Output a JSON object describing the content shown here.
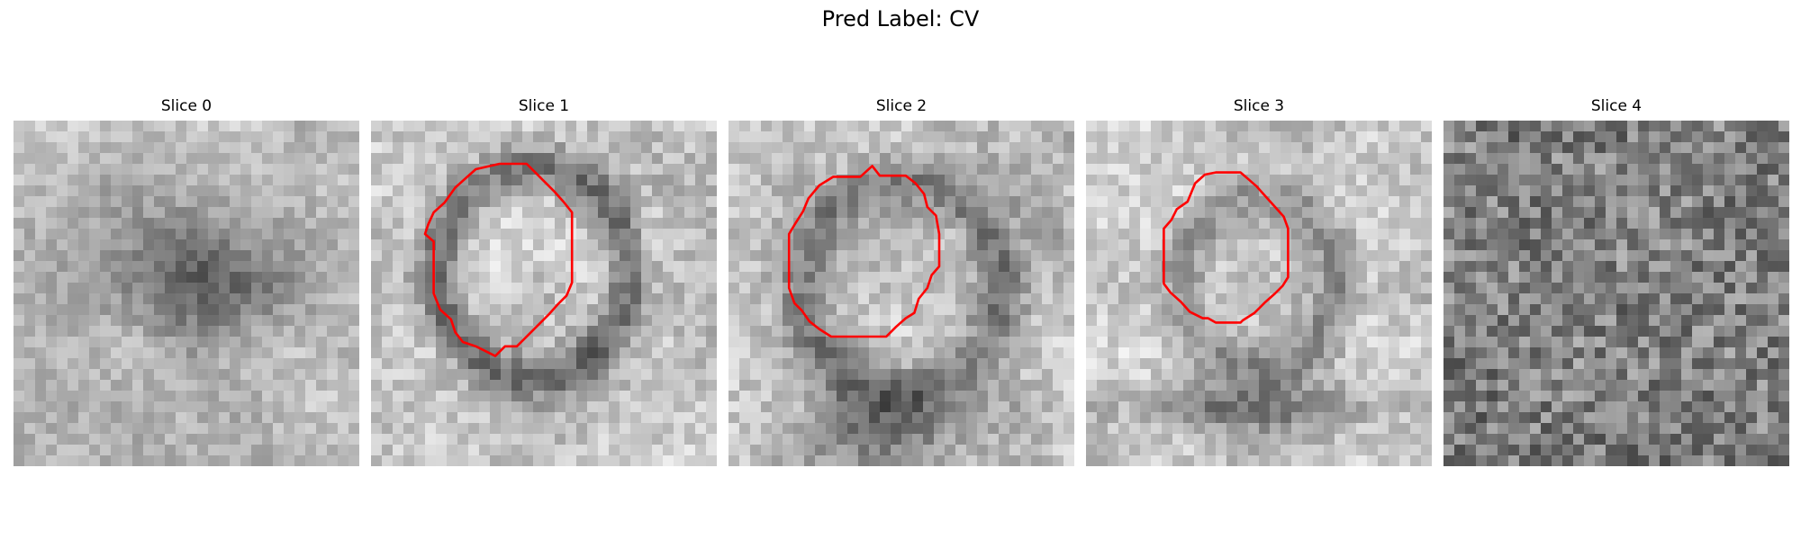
{
  "figure": {
    "title": "Pred Label: CV"
  },
  "panels": [
    {
      "title": "Slice 0",
      "has_contour": false
    },
    {
      "title": "Slice 1",
      "has_contour": true
    },
    {
      "title": "Slice 2",
      "has_contour": true
    },
    {
      "title": "Slice 3",
      "has_contour": true
    },
    {
      "title": "Slice 4",
      "has_contour": false
    }
  ],
  "colors": {
    "contour": "#ff0000",
    "background": "#ffffff"
  },
  "image_style": "grayscale 32x32 pixelated micrograph slices"
}
